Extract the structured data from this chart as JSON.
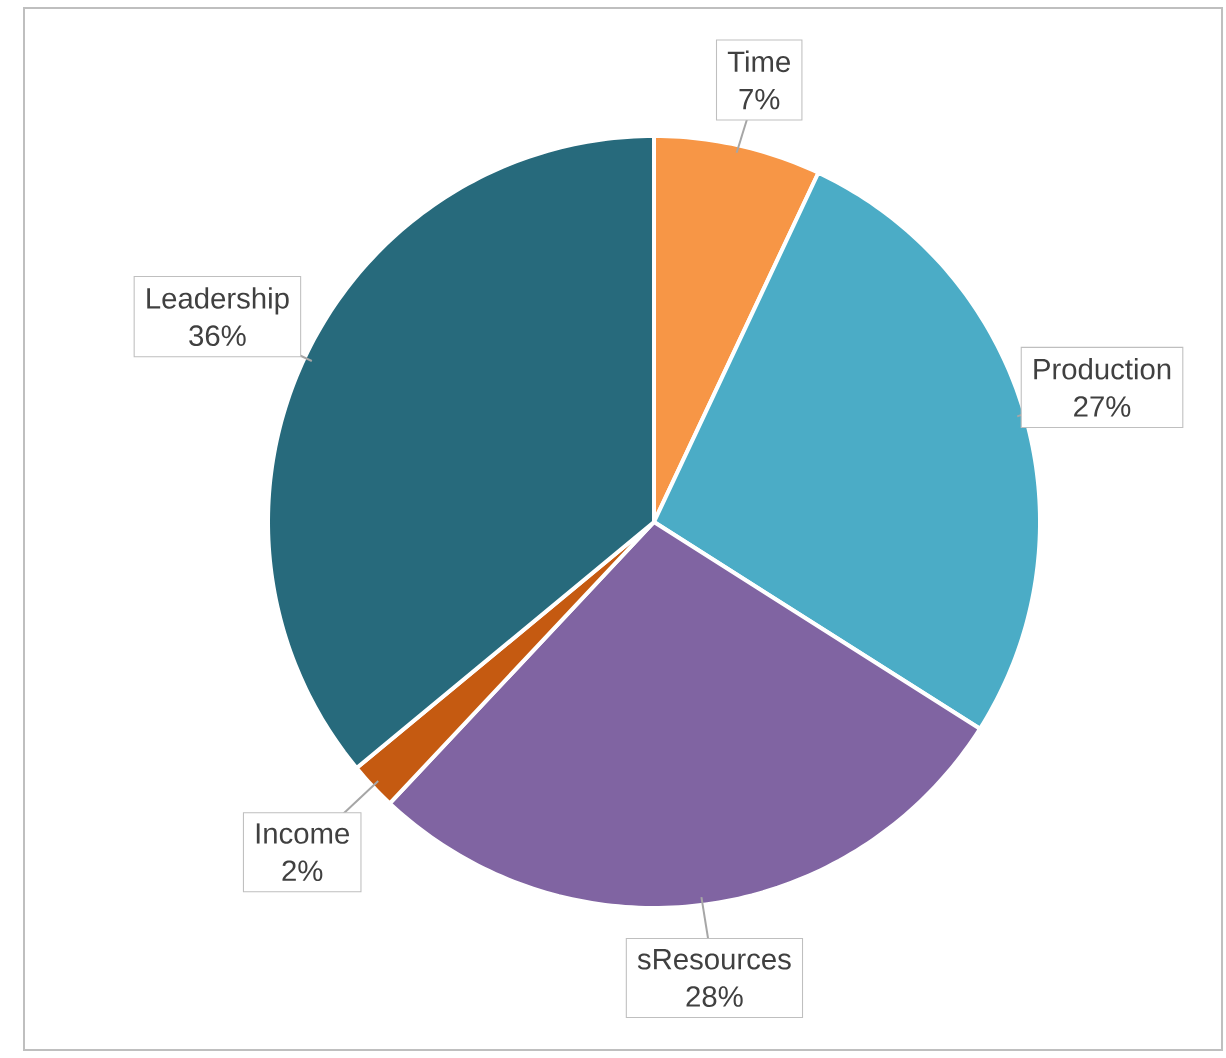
{
  "chart_data": {
    "type": "pie",
    "categories": [
      "Time",
      "Production",
      "sResources",
      "Income",
      "Leadership"
    ],
    "values": [
      7,
      27,
      28,
      2,
      36
    ],
    "value_labels": [
      "7%",
      "27%",
      "28%",
      "2%",
      "36%"
    ],
    "colors": [
      "#f79646",
      "#4bacc6",
      "#8064a2",
      "#c55a11",
      "#276a7c"
    ]
  }
}
